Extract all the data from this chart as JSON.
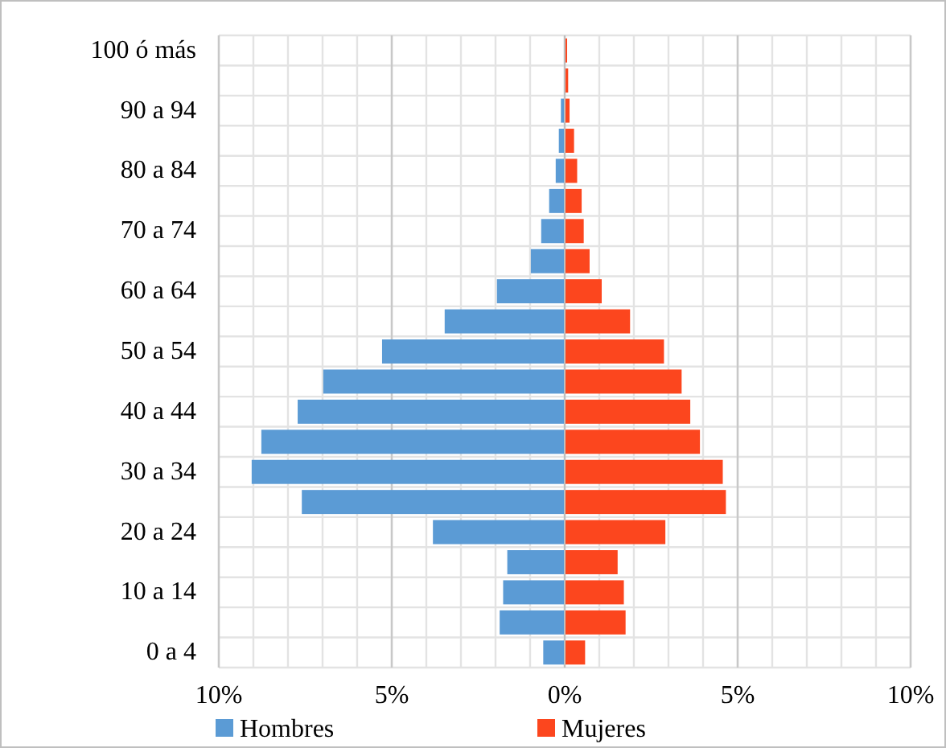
{
  "chart_data": {
    "type": "bar",
    "orientation": "horizontal",
    "categories": [
      "100 ó más",
      null,
      "90 a 94",
      null,
      "80 a 84",
      null,
      "70 a 74",
      null,
      "60 a 64",
      null,
      "50 a 54",
      null,
      "40 a 44",
      null,
      "30 a 34",
      null,
      "20 a 24",
      null,
      "10 a 14",
      null,
      "0 a 4"
    ],
    "series": [
      {
        "name": "Hombres",
        "color": "#5b9bd5",
        "values": [
          null,
          null,
          -0.11,
          -0.17,
          -0.26,
          -0.45,
          -0.68,
          -0.98,
          -1.96,
          -3.47,
          -5.28,
          -6.98,
          -7.72,
          -8.77,
          -9.05,
          -7.6,
          -3.81,
          -1.66,
          -1.78,
          -1.88,
          -0.62
        ]
      },
      {
        "name": "Mujeres",
        "color": "#fc461e",
        "values": [
          0.07,
          0.1,
          0.14,
          0.27,
          0.36,
          0.49,
          0.55,
          0.72,
          1.07,
          1.89,
          2.87,
          3.38,
          3.63,
          3.91,
          4.57,
          4.66,
          2.91,
          1.53,
          1.71,
          1.76,
          0.59
        ]
      }
    ],
    "xlim": [
      -10,
      10
    ],
    "xticks": [
      {
        "value": -10,
        "label": "10%"
      },
      {
        "value": -5,
        "label": "5%"
      },
      {
        "value": 0,
        "label": "0%"
      },
      {
        "value": 5,
        "label": "5%"
      },
      {
        "value": 10,
        "label": "10%"
      }
    ],
    "stacked": true,
    "grid": true,
    "legend": "bottom"
  }
}
